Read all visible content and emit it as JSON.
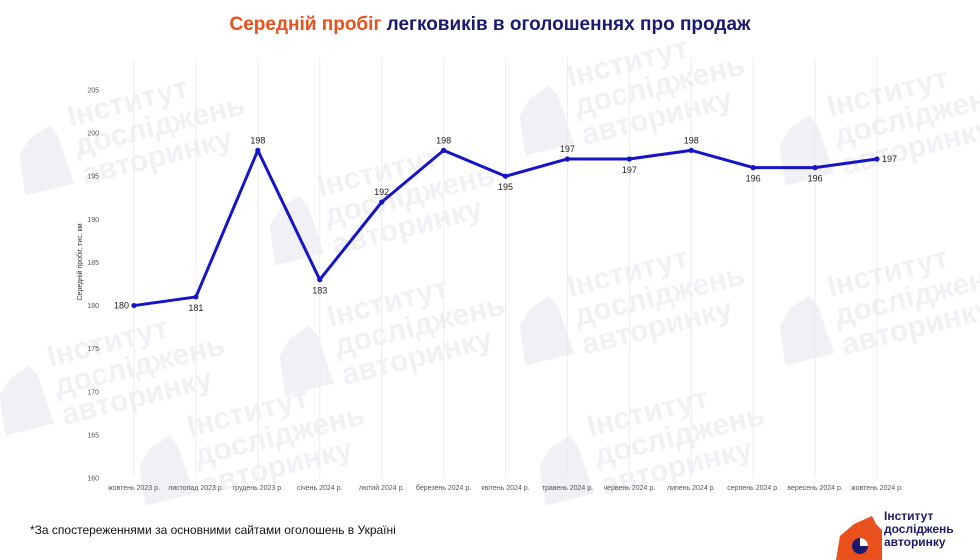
{
  "title": {
    "accent": "Середній пробіг",
    "rest": " легковиків в оголошеннях про продаж"
  },
  "watermark": {
    "lines": [
      "Інститут",
      "досліджень",
      "авторинку"
    ]
  },
  "chart_data": {
    "type": "line",
    "title": "Середній пробіг легковиків в оголошеннях про продаж",
    "ylabel": "Середній пробіг, тис. км",
    "xlabel": "",
    "categories": [
      "жовтень 2023 р.",
      "листопад 2023 р.",
      "грудень 2023 р.",
      "січень 2024 р.",
      "лютий 2024 р.",
      "березень 2024 р.",
      "квітень 2024 р.",
      "травень 2024 р.",
      "червень 2024 р.",
      "липень 2024 р.",
      "серпень 2024 р.",
      "вересень 2024 р.",
      "жовтень 2024 р."
    ],
    "values": [
      180,
      181,
      198,
      183,
      192,
      198,
      195,
      197,
      197,
      198,
      196,
      196,
      197
    ],
    "label_position": [
      "left",
      "below",
      "above",
      "below",
      "above",
      "above",
      "below",
      "above",
      "below",
      "above",
      "below",
      "below",
      "right"
    ],
    "ylim": [
      160,
      205
    ],
    "yticks": [
      160,
      165,
      170,
      175,
      180,
      185,
      190,
      195,
      200,
      205
    ],
    "grid": "vertical",
    "line_color": "#1515c8",
    "legend": "none"
  },
  "footnote": "*За спостереженнями за основними сайтами оголошень в Україні",
  "logo": {
    "lines": [
      "Інститут",
      "досліджень",
      "авторинку"
    ],
    "colors": {
      "orange": "#e8501c",
      "navy": "#1a1a6e"
    }
  }
}
